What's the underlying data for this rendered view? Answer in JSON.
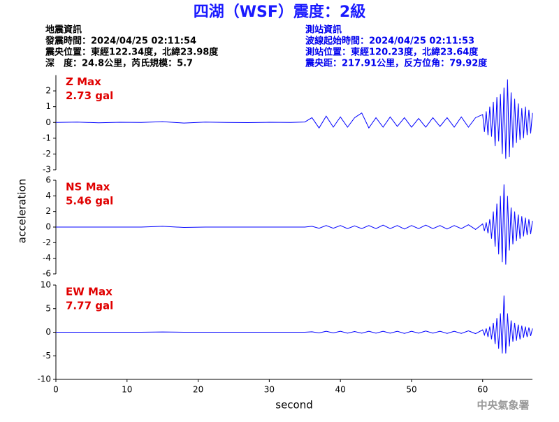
{
  "header": {
    "title": "四湖（WSF）震度：2級",
    "left_lines": [
      "地震資訊",
      "發震時間：2024/04/25 02:11:54",
      "震央位置：東經122.34度，北緯23.98度",
      "深　度：24.8公里，芮氏規模：5.7"
    ],
    "right_lines": [
      "測站資訊",
      "波線起始時間：2024/04/25 02:11:53",
      "測站位置：東經120.23度，北緯23.64度",
      "震央距：217.91公里，反方位角：79.92度"
    ]
  },
  "footer": "中央氣象署",
  "chart_data": [
    {
      "type": "line",
      "xlim": [
        0,
        67
      ],
      "ylim": [
        -3,
        3
      ],
      "yticks": [
        -3,
        -2,
        -1,
        0,
        1,
        2
      ],
      "x": [
        0,
        3,
        6,
        9,
        12,
        15,
        18,
        21,
        24,
        27,
        30,
        33,
        35,
        36,
        37,
        38,
        39,
        40,
        41,
        42,
        43,
        44,
        45,
        46,
        47,
        48,
        49,
        50,
        51,
        52,
        53,
        54,
        55,
        56,
        57,
        58,
        59,
        60,
        60.25,
        60.5,
        60.75,
        61,
        61.25,
        61.5,
        61.75,
        62,
        62.25,
        62.5,
        62.75,
        63,
        63.25,
        63.5,
        63.75,
        64,
        64.25,
        64.5,
        64.75,
        65,
        65.25,
        65.5,
        65.75,
        66,
        66.25,
        66.5,
        66.75,
        67
      ],
      "series": [
        {
          "name": "Z Max",
          "color": "#0000ff",
          "values": [
            0,
            0.02,
            -0.02,
            0.01,
            0,
            0.05,
            -0.04,
            0.02,
            0,
            -0.01,
            0.01,
            0,
            0.03,
            0.3,
            -0.35,
            0.4,
            -0.3,
            0.35,
            -0.3,
            0.3,
            0.6,
            -0.35,
            0.3,
            -0.3,
            0.35,
            -0.25,
            0.3,
            -0.3,
            0.25,
            -0.3,
            0.3,
            -0.25,
            0.3,
            -0.3,
            0.35,
            -0.3,
            0.3,
            0.5,
            -0.6,
            0.7,
            -0.8,
            1.0,
            -0.9,
            1.3,
            -1.5,
            1.6,
            -1.2,
            1.8,
            -2.0,
            2.2,
            -2.3,
            2.73,
            -2.2,
            1.9,
            -1.6,
            1.5,
            -1.3,
            1.2,
            -1.1,
            0.9,
            -1.0,
            1.0,
            -0.8,
            0.8,
            -0.7,
            0.6
          ]
        }
      ],
      "annotation": "2.73 gal",
      "label_color": "#e00000"
    },
    {
      "type": "line",
      "xlim": [
        0,
        67
      ],
      "ylim": [
        -6,
        6
      ],
      "yticks": [
        -6,
        -4,
        -2,
        0,
        2,
        4,
        6
      ],
      "ylabel": "acceleration",
      "x": [
        0,
        3,
        6,
        9,
        12,
        15,
        18,
        21,
        24,
        27,
        30,
        33,
        35,
        36,
        37,
        38,
        39,
        40,
        41,
        42,
        43,
        44,
        45,
        46,
        47,
        48,
        49,
        50,
        51,
        52,
        53,
        54,
        55,
        56,
        57,
        58,
        59,
        60,
        60.25,
        60.5,
        60.75,
        61,
        61.25,
        61.5,
        61.75,
        62,
        62.25,
        62.5,
        62.75,
        63,
        63.25,
        63.5,
        63.75,
        64,
        64.25,
        64.5,
        64.75,
        65,
        65.25,
        65.5,
        65.75,
        66,
        66.25,
        66.5,
        66.75,
        67
      ],
      "series": [
        {
          "name": "NS Max",
          "color": "#0000ff",
          "values": [
            0,
            0,
            0,
            0,
            0,
            0.1,
            -0.05,
            0,
            0,
            0,
            0,
            0,
            0,
            0.1,
            -0.15,
            0.2,
            -0.15,
            0.2,
            -0.2,
            0.15,
            -0.2,
            0.2,
            -0.2,
            0.25,
            -0.2,
            0.2,
            -0.25,
            0.2,
            -0.2,
            0.25,
            -0.2,
            0.2,
            -0.25,
            0.2,
            -0.2,
            0.3,
            -0.3,
            0.4,
            -0.5,
            0.6,
            -0.8,
            1.0,
            -1.5,
            2.0,
            -2.5,
            3.0,
            -3.5,
            4.0,
            -4.5,
            5.46,
            -4.8,
            4.0,
            -3.0,
            2.5,
            -2.2,
            2.0,
            -1.8,
            1.6,
            -1.5,
            1.4,
            -1.2,
            1.2,
            -1.0,
            1.0,
            -0.9,
            0.8
          ]
        }
      ],
      "annotation": "5.46 gal",
      "label_color": "#e00000"
    },
    {
      "type": "line",
      "xlim": [
        0,
        67
      ],
      "ylim": [
        -10,
        10
      ],
      "yticks": [
        -10,
        -5,
        0,
        5,
        10
      ],
      "xticks": [
        0,
        10,
        20,
        30,
        40,
        50,
        60
      ],
      "xlabel": "second",
      "x": [
        0,
        3,
        6,
        9,
        12,
        15,
        18,
        21,
        24,
        27,
        30,
        33,
        35,
        36,
        37,
        38,
        39,
        40,
        41,
        42,
        43,
        44,
        45,
        46,
        47,
        48,
        49,
        50,
        51,
        52,
        53,
        54,
        55,
        56,
        57,
        58,
        59,
        60,
        60.25,
        60.5,
        60.75,
        61,
        61.25,
        61.5,
        61.75,
        62,
        62.25,
        62.5,
        62.75,
        63,
        63.25,
        63.5,
        63.75,
        64,
        64.25,
        64.5,
        64.75,
        65,
        65.25,
        65.5,
        65.75,
        66,
        66.25,
        66.5,
        66.75,
        67
      ],
      "series": [
        {
          "name": "EW Max",
          "color": "#0000ff",
          "values": [
            0,
            0,
            0,
            0,
            0,
            0.05,
            0,
            0,
            0,
            0,
            0,
            0,
            0,
            0.1,
            -0.15,
            0.2,
            -0.15,
            0.2,
            -0.2,
            0.15,
            -0.2,
            0.2,
            -0.2,
            0.2,
            -0.2,
            0.2,
            -0.25,
            0.2,
            -0.2,
            0.25,
            -0.2,
            0.2,
            -0.25,
            0.2,
            -0.25,
            0.3,
            -0.3,
            0.5,
            -0.6,
            0.8,
            -1,
            1.2,
            -1.5,
            2,
            -2.5,
            3,
            -3.5,
            4,
            -4.5,
            7.77,
            -4.5,
            4,
            -3,
            2.5,
            -2,
            2,
            -1.8,
            1.6,
            -1.5,
            1.4,
            -1.2,
            1.2,
            -1,
            1,
            -0.8,
            0.8
          ]
        }
      ],
      "annotation": "7.77 gal",
      "label_color": "#e00000"
    }
  ]
}
